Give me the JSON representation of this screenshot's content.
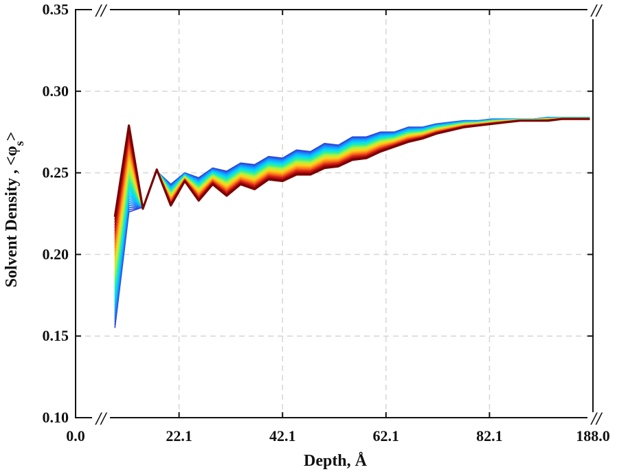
{
  "chart_data": {
    "type": "line",
    "title": "",
    "xlabel": "Depth, Å",
    "ylabel": "Solvent Density , <φs>",
    "ylabel_main": "Solvent Density , <φ",
    "ylabel_sub": "s",
    "ylabel_end": ">",
    "xticks": [
      "0.0",
      "22.1",
      "42.1",
      "62.1",
      "82.1",
      "188.0"
    ],
    "yticks": [
      "0.10",
      "0.15",
      "0.20",
      "0.25",
      "0.30",
      "0.35"
    ],
    "xlim": [
      0,
      100
    ],
    "ylim": [
      0.1,
      0.35
    ],
    "axis_break_mark": "//",
    "grid": true,
    "colormap": "jet",
    "colormap_stops": [
      "#2b3bd6",
      "#1e90ff",
      "#00d8ff",
      "#2ef0a0",
      "#b6f23a",
      "#ffd21a",
      "#ff7a1a",
      "#d21a1a",
      "#7a0000"
    ],
    "num_series": 40,
    "x": [
      7.6,
      10.3,
      13.0,
      15.7,
      18.4,
      21.1,
      23.8,
      26.5,
      29.2,
      31.9,
      34.6,
      37.3,
      40.0,
      42.7,
      45.4,
      48.1,
      50.8,
      53.5,
      56.2,
      58.9,
      61.6,
      64.3,
      67.0,
      69.7,
      72.4,
      75.1,
      77.8,
      80.5,
      83.2,
      85.9,
      88.6,
      91.3,
      94.0,
      96.7,
      99.4
    ],
    "series_first": {
      "name": "",
      "values": [
        0.155,
        0.226,
        0.229,
        0.251,
        0.243,
        0.25,
        0.247,
        0.253,
        0.251,
        0.256,
        0.255,
        0.26,
        0.259,
        0.264,
        0.263,
        0.268,
        0.267,
        0.272,
        0.272,
        0.275,
        0.275,
        0.278,
        0.278,
        0.28,
        0.281,
        0.282,
        0.282,
        0.283,
        0.283,
        0.283,
        0.283,
        0.284,
        0.284,
        0.284,
        0.284
      ]
    },
    "series_last": {
      "name": "",
      "values": [
        0.223,
        0.279,
        0.228,
        0.252,
        0.23,
        0.245,
        0.233,
        0.243,
        0.236,
        0.243,
        0.24,
        0.246,
        0.245,
        0.249,
        0.249,
        0.253,
        0.254,
        0.258,
        0.259,
        0.263,
        0.266,
        0.269,
        0.271,
        0.274,
        0.276,
        0.278,
        0.279,
        0.28,
        0.281,
        0.282,
        0.282,
        0.282,
        0.283,
        0.283,
        0.283
      ]
    }
  }
}
